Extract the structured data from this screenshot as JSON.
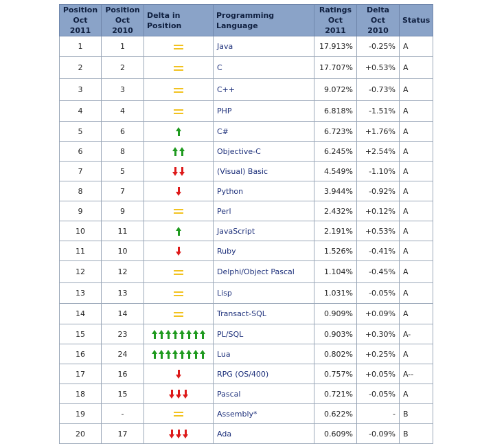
{
  "headers": {
    "pos_2011": "Position Oct 2011",
    "pos_2010": "Position Oct 2010",
    "delta_pos": "Delta in Position",
    "language": "Programming Language",
    "ratings": "Ratings Oct 2011",
    "delta": "Delta Oct 2010",
    "status": "Status"
  },
  "colors": {
    "header_bg": "#8aa3c8",
    "up": "#1f9a1f",
    "down": "#dd1a1a",
    "equal": "#f2c21f",
    "link": "#1c2f7a"
  },
  "rows": [
    {
      "pos2011": "1",
      "pos2010": "1",
      "change": {
        "type": "equal",
        "count": 1
      },
      "language": "Java",
      "ratings": "17.913%",
      "delta": "-0.25%",
      "status": "A"
    },
    {
      "pos2011": "2",
      "pos2010": "2",
      "change": {
        "type": "equal",
        "count": 1
      },
      "language": "C",
      "ratings": "17.707%",
      "delta": "+0.53%",
      "status": "A"
    },
    {
      "pos2011": "3",
      "pos2010": "3",
      "change": {
        "type": "equal",
        "count": 1
      },
      "language": "C++",
      "ratings": "9.072%",
      "delta": "-0.73%",
      "status": "A"
    },
    {
      "pos2011": "4",
      "pos2010": "4",
      "change": {
        "type": "equal",
        "count": 1
      },
      "language": "PHP",
      "ratings": "6.818%",
      "delta": "-1.51%",
      "status": "A"
    },
    {
      "pos2011": "5",
      "pos2010": "6",
      "change": {
        "type": "up",
        "count": 1
      },
      "language": "C#",
      "ratings": "6.723%",
      "delta": "+1.76%",
      "status": "A"
    },
    {
      "pos2011": "6",
      "pos2010": "8",
      "change": {
        "type": "up",
        "count": 2
      },
      "language": "Objective-C",
      "ratings": "6.245%",
      "delta": "+2.54%",
      "status": "A"
    },
    {
      "pos2011": "7",
      "pos2010": "5",
      "change": {
        "type": "down",
        "count": 2
      },
      "language": "(Visual) Basic",
      "ratings": "4.549%",
      "delta": "-1.10%",
      "status": "A"
    },
    {
      "pos2011": "8",
      "pos2010": "7",
      "change": {
        "type": "down",
        "count": 1
      },
      "language": "Python",
      "ratings": "3.944%",
      "delta": "-0.92%",
      "status": "A"
    },
    {
      "pos2011": "9",
      "pos2010": "9",
      "change": {
        "type": "equal",
        "count": 1
      },
      "language": "Perl",
      "ratings": "2.432%",
      "delta": "+0.12%",
      "status": "A"
    },
    {
      "pos2011": "10",
      "pos2010": "11",
      "change": {
        "type": "up",
        "count": 1
      },
      "language": "JavaScript",
      "ratings": "2.191%",
      "delta": "+0.53%",
      "status": "A"
    },
    {
      "pos2011": "11",
      "pos2010": "10",
      "change": {
        "type": "down",
        "count": 1
      },
      "language": "Ruby",
      "ratings": "1.526%",
      "delta": "-0.41%",
      "status": "A"
    },
    {
      "pos2011": "12",
      "pos2010": "12",
      "change": {
        "type": "equal",
        "count": 1
      },
      "language": "Delphi/Object Pascal",
      "ratings": "1.104%",
      "delta": "-0.45%",
      "status": "A"
    },
    {
      "pos2011": "13",
      "pos2010": "13",
      "change": {
        "type": "equal",
        "count": 1
      },
      "language": "Lisp",
      "ratings": "1.031%",
      "delta": "-0.05%",
      "status": "A"
    },
    {
      "pos2011": "14",
      "pos2010": "14",
      "change": {
        "type": "equal",
        "count": 1
      },
      "language": "Transact-SQL",
      "ratings": "0.909%",
      "delta": "+0.09%",
      "status": "A"
    },
    {
      "pos2011": "15",
      "pos2010": "23",
      "change": {
        "type": "up",
        "count": 8
      },
      "language": "PL/SQL",
      "ratings": "0.903%",
      "delta": "+0.30%",
      "status": "A-"
    },
    {
      "pos2011": "16",
      "pos2010": "24",
      "change": {
        "type": "up",
        "count": 8
      },
      "language": "Lua",
      "ratings": "0.802%",
      "delta": "+0.25%",
      "status": "A"
    },
    {
      "pos2011": "17",
      "pos2010": "16",
      "change": {
        "type": "down",
        "count": 1
      },
      "language": "RPG (OS/400)",
      "ratings": "0.757%",
      "delta": "+0.05%",
      "status": "A--"
    },
    {
      "pos2011": "18",
      "pos2010": "15",
      "change": {
        "type": "down",
        "count": 3
      },
      "language": "Pascal",
      "ratings": "0.721%",
      "delta": "-0.05%",
      "status": "A"
    },
    {
      "pos2011": "19",
      "pos2010": "-",
      "change": {
        "type": "equal",
        "count": 1
      },
      "language": "Assembly*",
      "ratings": "0.622%",
      "delta": "-",
      "status": "B"
    },
    {
      "pos2011": "20",
      "pos2010": "17",
      "change": {
        "type": "down",
        "count": 3
      },
      "language": "Ada",
      "ratings": "0.609%",
      "delta": "-0.09%",
      "status": "B"
    }
  ]
}
